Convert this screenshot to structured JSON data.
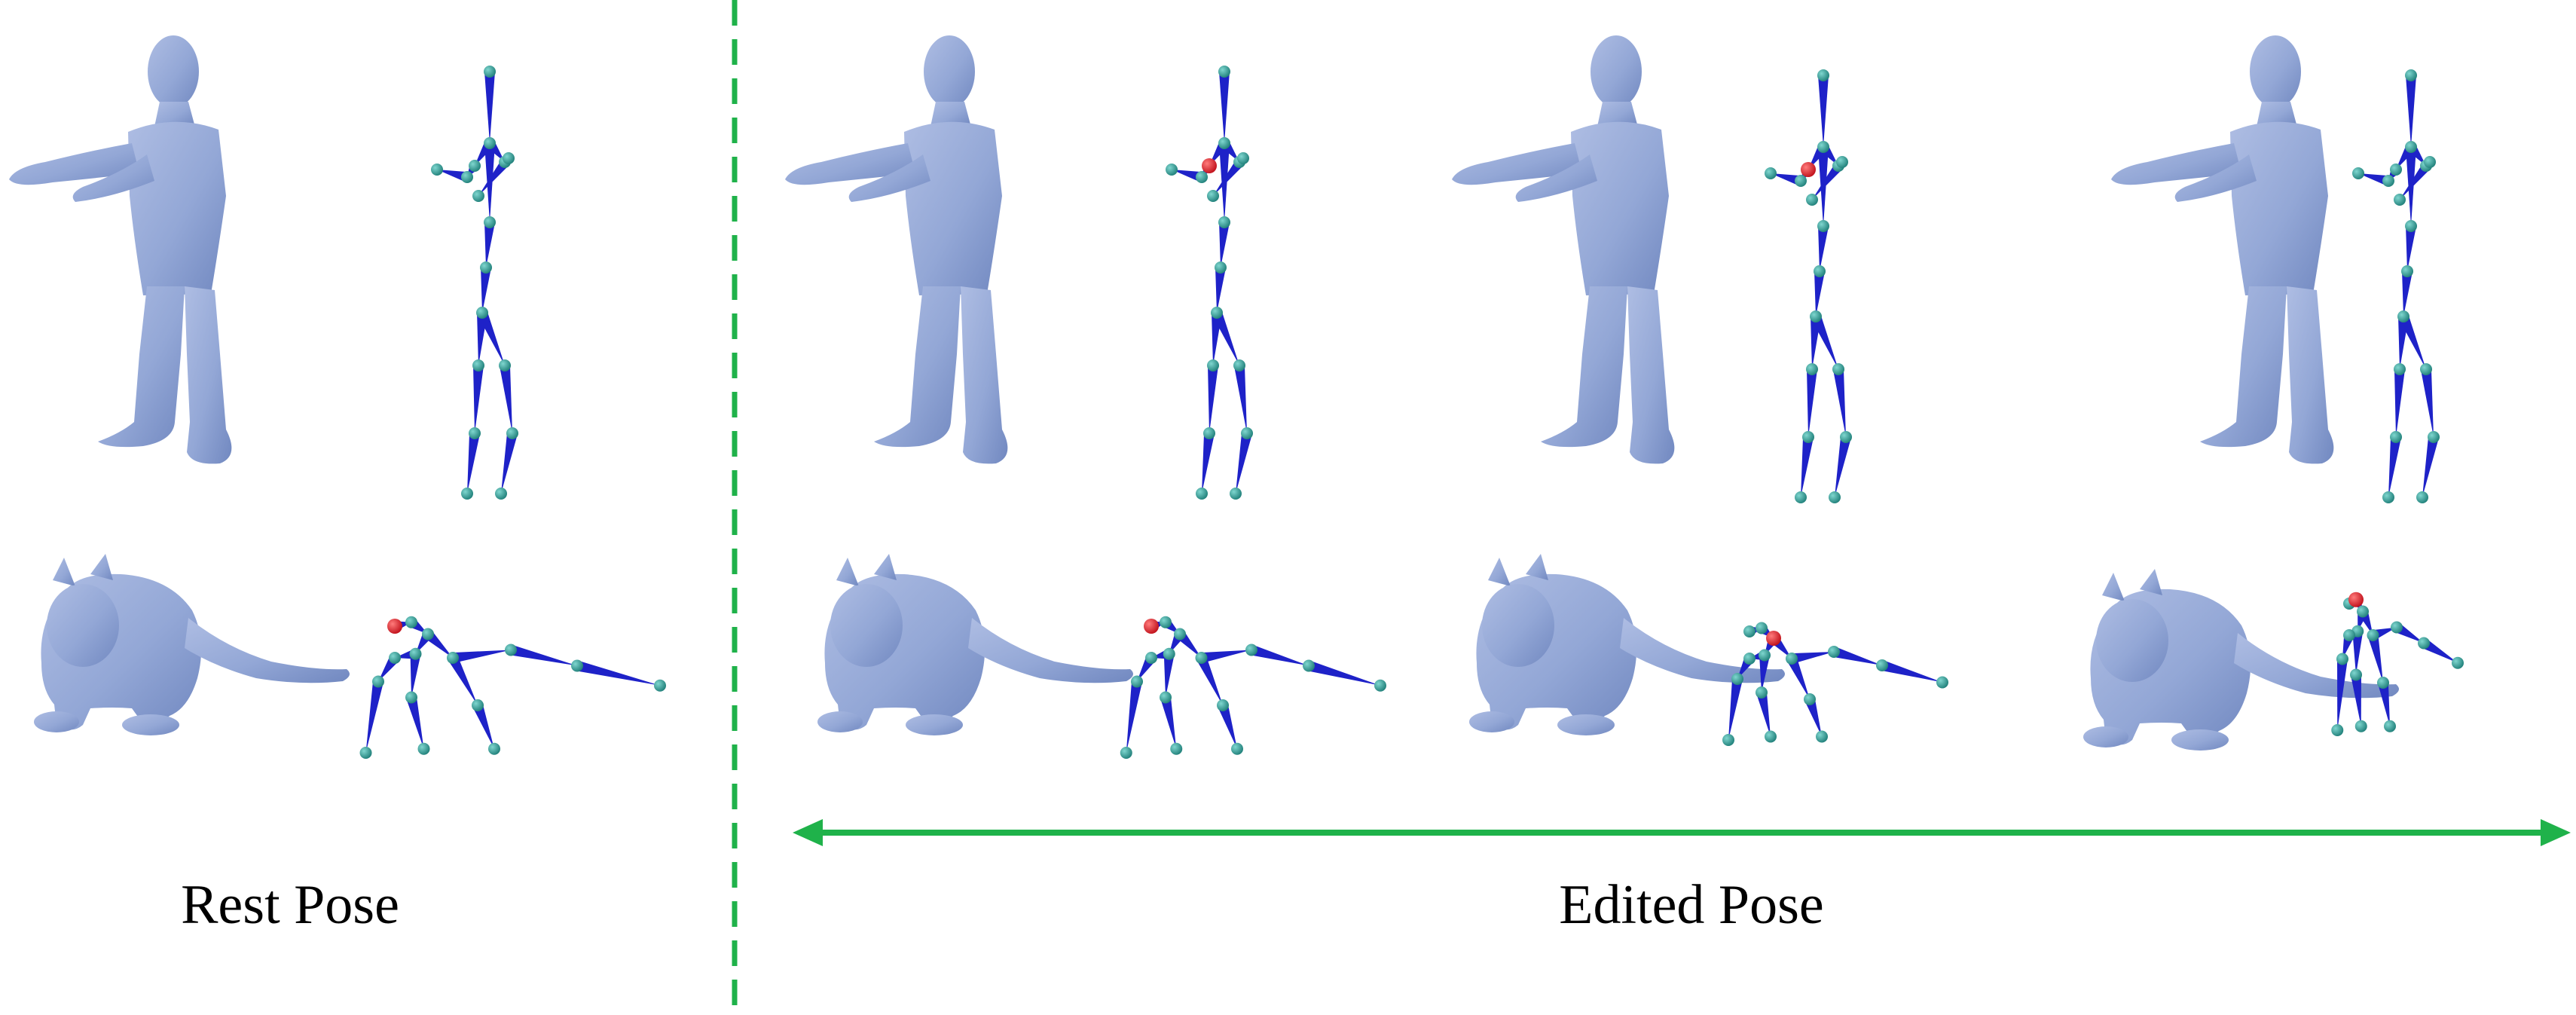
{
  "labels": {
    "rest": "Rest Pose",
    "edited": "Edited Pose"
  },
  "colors": {
    "mesh": "#95a9d6",
    "mesh_shade": "#6f86bb",
    "bone": "#1e22c8",
    "joint": "#2f9f98",
    "root_joint": "#e0202a",
    "divider": "#1fb24a",
    "arrow": "#1fb24a"
  },
  "panels": [
    {
      "group": "rest",
      "subject": "human",
      "items": [
        "mesh",
        "skeleton"
      ]
    },
    {
      "group": "rest",
      "subject": "cat",
      "items": [
        "mesh",
        "skeleton"
      ]
    },
    {
      "group": "edited",
      "subject": "human",
      "count": 3,
      "items": [
        "mesh",
        "skeleton"
      ]
    },
    {
      "group": "edited",
      "subject": "cat",
      "count": 3,
      "items": [
        "mesh",
        "skeleton"
      ]
    }
  ]
}
